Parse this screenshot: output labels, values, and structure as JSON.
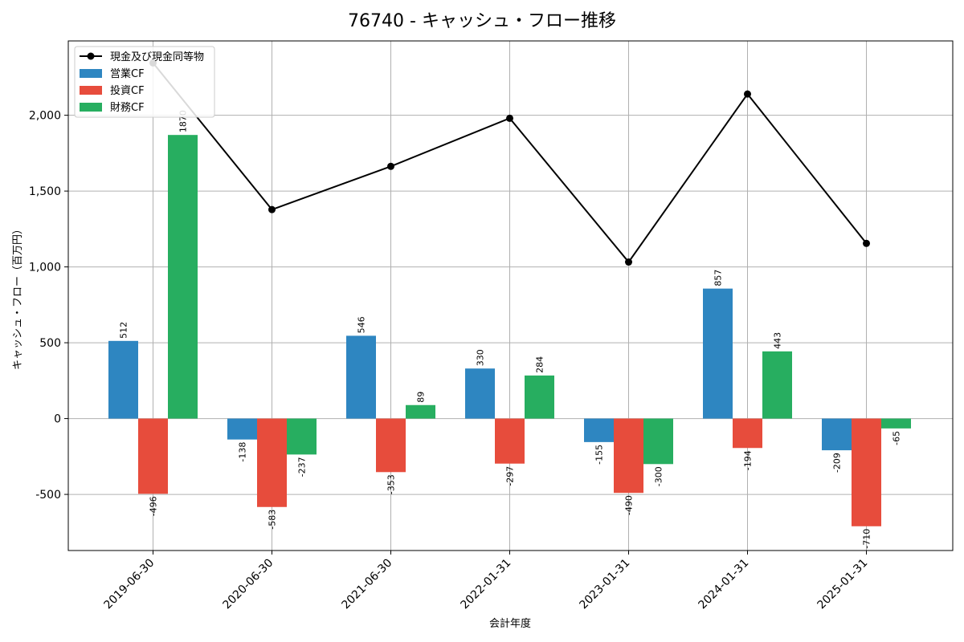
{
  "chart_data": {
    "type": "bar",
    "title": "76740 - キャッシュ・フロー推移",
    "xlabel": "会計年度",
    "ylabel": "キャッシュ・フロー（百万円）",
    "categories": [
      "2019-06-30",
      "2020-06-30",
      "2021-06-30",
      "2022-01-31",
      "2023-01-31",
      "2024-01-31",
      "2025-01-31"
    ],
    "ylim": [
      -870,
      2490
    ],
    "yticks": [
      -500,
      0,
      500,
      1000,
      1500,
      2000
    ],
    "ytick_labels": [
      "-500",
      "0",
      "500",
      "1,000",
      "1,500",
      "2,000"
    ],
    "grid": true,
    "legend_position": "top-left",
    "series": [
      {
        "name": "営業CF",
        "kind": "bar",
        "color": "#2e86c1",
        "values": [
          512,
          -138,
          546,
          330,
          -155,
          857,
          -209
        ]
      },
      {
        "name": "投資CF",
        "kind": "bar",
        "color": "#e74c3c",
        "values": [
          -496,
          -583,
          -353,
          -297,
          -490,
          -194,
          -710
        ]
      },
      {
        "name": "財務CF",
        "kind": "bar",
        "color": "#27ae60",
        "values": [
          1870,
          -237,
          89,
          284,
          -300,
          443,
          -65
        ]
      },
      {
        "name": "現金及び現金同等物",
        "kind": "line",
        "color": "#000000",
        "values": [
          2345,
          1378,
          1663,
          1980,
          1032,
          2140,
          1155
        ]
      }
    ]
  }
}
